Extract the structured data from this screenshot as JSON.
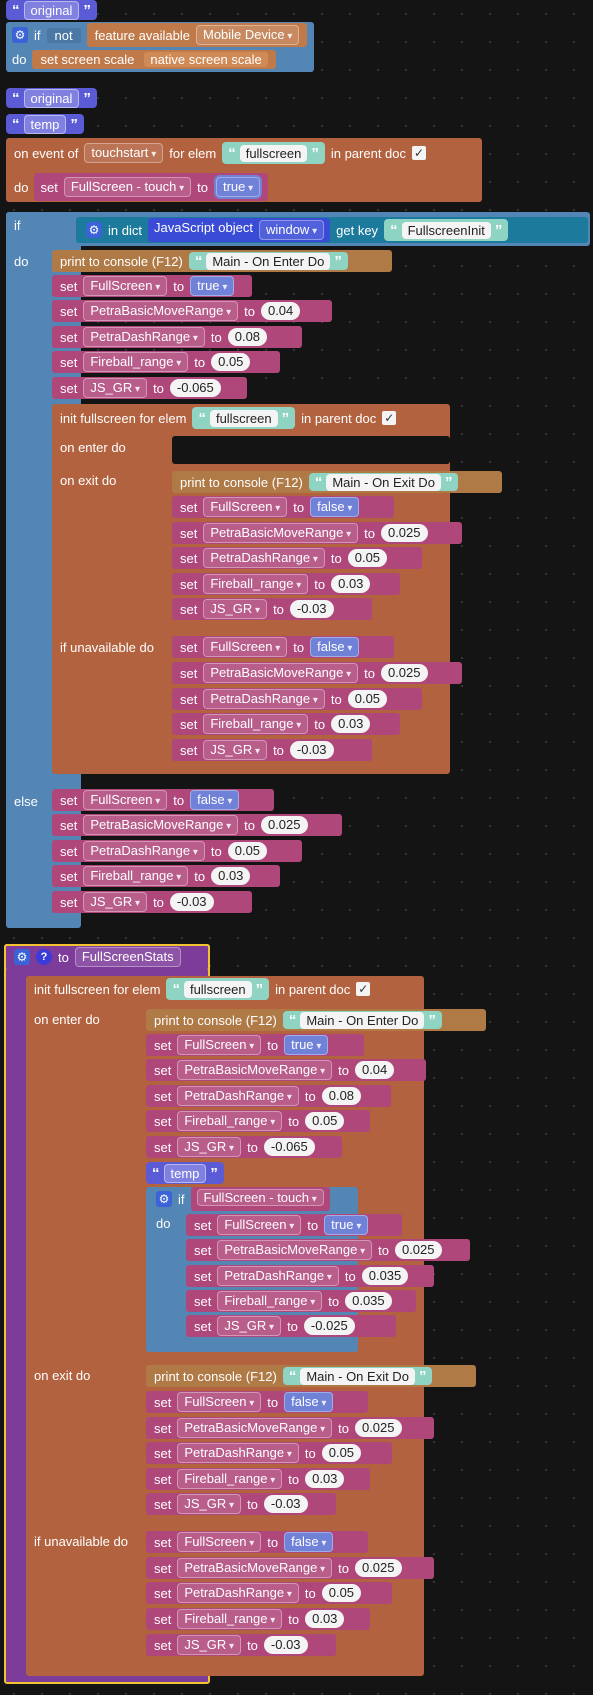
{
  "colors": {
    "set": "#b0477b",
    "control": "#5385b5",
    "event": "#b2623f",
    "print": "#b07a46",
    "text": "#5b5bd6",
    "procedure": "#7e3c9a"
  },
  "blocks": {
    "original1": "original",
    "if_kw": "if",
    "not_kw": "not",
    "feature_kw": "feature available",
    "mobile_device": "Mobile Device",
    "do_kw": "do",
    "set_screen_scale": "set screen scale",
    "native_scale": "native screen scale",
    "original2": "original",
    "temp": "temp",
    "on_event": "on event of",
    "touchstart": "touchstart",
    "for_elem": "for elem",
    "fullscreen": "fullscreen",
    "in_parent_doc": "in parent doc",
    "set_kw": "set",
    "to_kw": "to",
    "fs_touch": "FullScreen - touch",
    "true": "true",
    "false": "false",
    "in_dict": "in dict",
    "js_object": "JavaScript object",
    "window": "window",
    "get_key": "get key",
    "fs_init": "FullscreenInit",
    "print": "print to console (F12)",
    "enter_msg": "Main - On Enter Do",
    "exit_msg": "Main - On Exit Do",
    "v_fullscreen": "FullScreen",
    "v_move": "PetraBasicMoveRange",
    "v_dash": "PetraDashRange",
    "v_fire": "Fireball_range",
    "v_jsgr": "JS_GR",
    "n_004": "0.04",
    "n_008": "0.08",
    "n_005": "0.05",
    "n_m0065": "-0.065",
    "n_0025": "0.025",
    "n_003": "0.03",
    "n_m003": "-0.03",
    "n_0035": "0.035",
    "n_m0025": "-0.025",
    "init_fs": "init fullscreen for elem",
    "on_enter": "on enter do",
    "on_exit": "on exit do",
    "if_unavail": "if unavailable do",
    "else_kw": "else",
    "proc_to": "to",
    "proc_name": "FullScreenStats"
  }
}
